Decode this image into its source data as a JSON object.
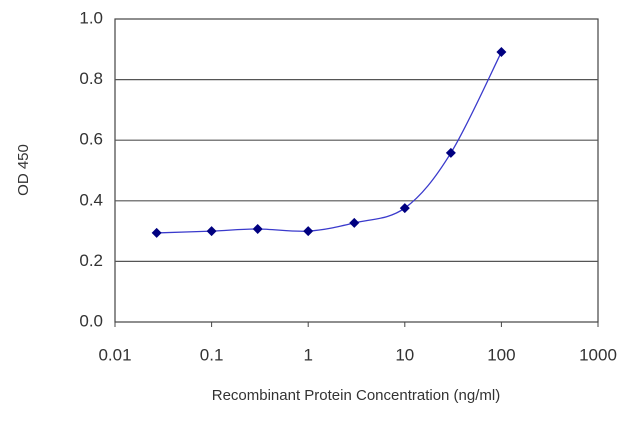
{
  "chart_data": {
    "type": "line",
    "x_label": "Recombinant Protein Concentration (ng/ml)",
    "y_label": "OD 450",
    "x": [
      0.027,
      0.1,
      0.3,
      1,
      3,
      10,
      30,
      100
    ],
    "series": [
      {
        "color": "#000080",
        "values": [
          0.294,
          0.3,
          0.307,
          0.3,
          0.327,
          0.376,
          0.558,
          0.891
        ]
      }
    ],
    "x_log": true,
    "xlim": [
      0.01,
      1000
    ],
    "xticks": [
      0.01,
      0.1,
      1,
      10,
      100,
      1000
    ],
    "ylim": [
      0,
      1
    ],
    "yticks": [
      {
        "value": 0,
        "label": "0.0"
      },
      0.2,
      0.4,
      0.6,
      0.8,
      {
        "value": 1,
        "label": "1.0"
      }
    ],
    "grid": true
  }
}
